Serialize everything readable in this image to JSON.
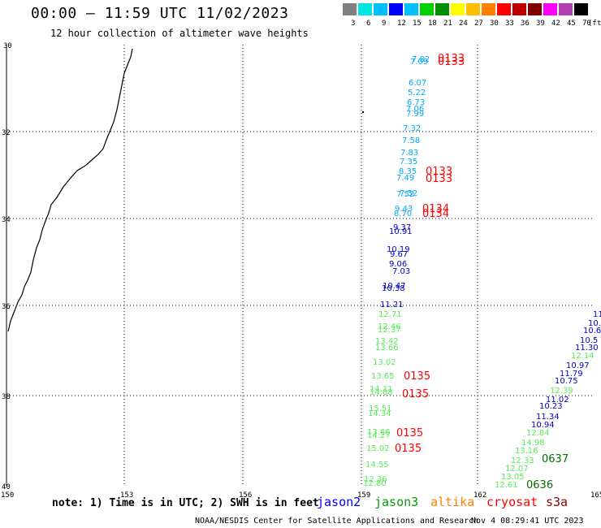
{
  "header": {
    "title": "00:00 – 11:59 UTC 11/02/2023",
    "subtitle": "12 hour collection of altimeter wave heights"
  },
  "legend": {
    "colors": [
      "#808080",
      "#00e6e6",
      "#00bfff",
      "#0000ff",
      "#00c0ff",
      "#00d000",
      "#009000",
      "#ffff00",
      "#ffbf00",
      "#ff8000",
      "#ff0000",
      "#c00000",
      "#800000",
      "#ff00ff",
      "#b040b0",
      "#000000"
    ],
    "labels": [
      "3",
      "6",
      "9",
      "12",
      "15",
      "18",
      "21",
      "24",
      "27",
      "30",
      "33",
      "36",
      "39",
      "42",
      "45",
      "70",
      "(ft)"
    ]
  },
  "map": {
    "lat_labels": [
      "30",
      "32",
      "34",
      "36",
      "38",
      "40"
    ],
    "lon_labels": [
      "150",
      "153",
      "156",
      "159",
      "162",
      "165"
    ],
    "grid_color": "#000000",
    "coast_color": "#000000"
  },
  "tracks": {
    "jason3_north": {
      "color": "#00aaff",
      "values": [
        "7.82",
        "7.09",
        "6.07",
        "5.22",
        "6.73",
        "7.06",
        "7.99",
        "7.32",
        "7.58",
        "7.83",
        "7.52",
        "7.35",
        "8.35",
        "7.49",
        "7.52",
        "9.43",
        "8.70"
      ]
    },
    "jason2_north": {
      "color": "#0000cc",
      "values": [
        "9.37",
        "10.91",
        "10.19",
        "9.67",
        "9.06",
        "7.03",
        "10.47",
        "10.38",
        "11.21"
      ]
    },
    "green_south": {
      "color": "#55ee55",
      "values": [
        "12.71",
        "12.46",
        "12.37",
        "13.42",
        "13.66",
        "13.02",
        "13.65",
        "14.11",
        "14.08",
        "15.51",
        "14.34",
        "13.66",
        "14.27",
        "15.02",
        "14.55",
        "12.36",
        "12.80"
      ]
    },
    "time_stamps_red": [
      "0133",
      "0133",
      "0133",
      "0133",
      "0134",
      "0134",
      "0135",
      "0135",
      "0135",
      "0135"
    ],
    "east_track_blue": {
      "color": "#0000cc",
      "values": [
        "11",
        "10.",
        "10.6",
        "10.5",
        "11.30",
        "10.97",
        "11.79",
        "10.75",
        "11.02",
        "10.23",
        "11.34",
        "10.94"
      ]
    },
    "east_track_green": {
      "color": "#55ee55",
      "values": [
        "12.14",
        "12.39",
        "12.84",
        "14.98",
        "13.16",
        "12.33",
        "12.07",
        "13.05",
        "12.61"
      ]
    },
    "time_stamps_green": [
      "0637",
      "0636"
    ]
  },
  "footer": {
    "note": "note: 1) Time is in UTC; 2) SWH is in feet",
    "satellites": [
      {
        "name": "jason2",
        "color": "#0000ff"
      },
      {
        "name": "jason3",
        "color": "#00a000"
      },
      {
        "name": "altika",
        "color": "#ff8000"
      },
      {
        "name": "cryosat",
        "color": "#ff0000"
      },
      {
        "name": "s3a",
        "color": "#800000"
      }
    ],
    "credit": "NOAA/NESDIS Center for Satellite Applications and Research",
    "timestamp": "Nov  4 08:29:41 UTC 2023"
  }
}
